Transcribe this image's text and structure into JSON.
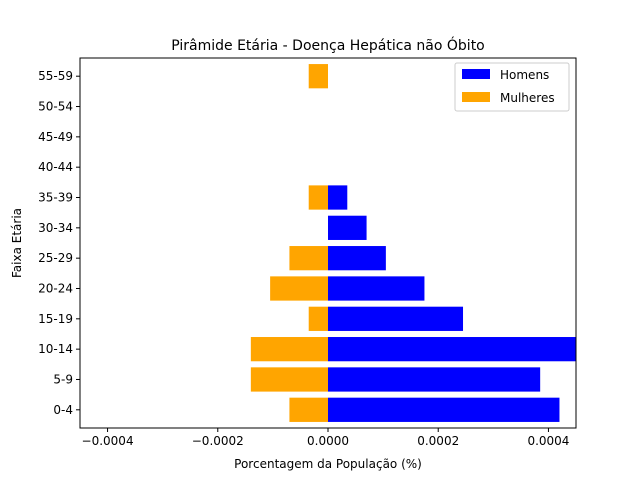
{
  "chart_data": {
    "type": "bar",
    "orientation": "horizontal",
    "title": "Pirâmide Etária - Doença Hepática não Óbito",
    "xlabel": "Porcentagem da População (%)",
    "ylabel": "Faixa Etária",
    "xlim": [
      -0.00045,
      0.00045
    ],
    "x_ticks": [
      -0.0004,
      -0.0002,
      0.0,
      0.0002,
      0.0004
    ],
    "x_tick_labels": [
      "−0.0004",
      "−0.0002",
      "0.0000",
      "0.0002",
      "0.0004"
    ],
    "categories": [
      "0-4",
      "5-9",
      "10-14",
      "15-19",
      "20-24",
      "25-29",
      "30-34",
      "35-39",
      "40-44",
      "45-49",
      "50-54",
      "55-59"
    ],
    "series": [
      {
        "name": "Homens",
        "color": "#0000ff",
        "values": [
          0.00042,
          0.000385,
          0.000455,
          0.000245,
          0.000175,
          0.000105,
          7e-05,
          3.5e-05,
          0,
          0,
          0,
          0
        ]
      },
      {
        "name": "Mulheres",
        "color": "#ffa500",
        "values": [
          -7e-05,
          -0.00014,
          -0.00014,
          -3.5e-05,
          -0.000105,
          -7e-05,
          0,
          -3.5e-05,
          0,
          0,
          0,
          -3.5e-05
        ]
      }
    ],
    "grid": false,
    "legend_position": "top-right"
  }
}
